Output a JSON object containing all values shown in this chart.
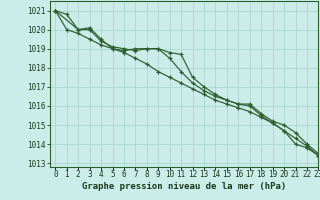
{
  "title": "Graphe pression niveau de la mer (hPa)",
  "bg_color": "#ccecea",
  "grid_color": "#aad8d4",
  "line_color": "#2d5e2d",
  "xlim": [
    -0.5,
    23
  ],
  "ylim": [
    1012.8,
    1021.5
  ],
  "yticks": [
    1013,
    1014,
    1015,
    1016,
    1017,
    1018,
    1019,
    1020,
    1021
  ],
  "xticks": [
    0,
    1,
    2,
    3,
    4,
    5,
    6,
    7,
    8,
    9,
    10,
    11,
    12,
    13,
    14,
    15,
    16,
    17,
    18,
    19,
    20,
    21,
    22,
    23
  ],
  "series1_x": [
    0,
    1,
    2,
    3,
    4,
    5,
    6,
    7,
    8,
    9,
    10,
    11,
    12,
    13,
    14,
    15,
    16,
    17,
    18,
    19,
    20,
    21,
    22,
    23
  ],
  "series1_y": [
    1021.0,
    1020.8,
    1020.0,
    1020.0,
    1019.4,
    1019.1,
    1019.0,
    1018.9,
    1019.0,
    1019.0,
    1018.8,
    1018.7,
    1017.5,
    1017.0,
    1016.6,
    1016.3,
    1016.1,
    1016.0,
    1015.5,
    1015.1,
    1014.7,
    1014.0,
    1013.8,
    1013.4
  ],
  "series2_x": [
    0,
    2,
    3,
    4,
    5,
    6,
    7,
    8,
    9,
    10,
    11,
    12,
    13,
    14,
    15,
    16,
    17,
    18,
    19,
    20,
    21,
    22,
    23
  ],
  "series2_y": [
    1021.0,
    1020.0,
    1020.1,
    1019.5,
    1019.0,
    1018.9,
    1019.0,
    1019.0,
    1019.0,
    1018.5,
    1017.8,
    1017.2,
    1016.8,
    1016.5,
    1016.3,
    1016.1,
    1016.1,
    1015.6,
    1015.2,
    1015.0,
    1014.6,
    1014.0,
    1013.5
  ],
  "series3_x": [
    0,
    1,
    2,
    3,
    4,
    5,
    6,
    7,
    8,
    9,
    10,
    11,
    12,
    13,
    14,
    15,
    16,
    17,
    18,
    19,
    20,
    21,
    22,
    23
  ],
  "series3_y": [
    1021.0,
    1020.0,
    1019.8,
    1019.5,
    1019.2,
    1019.0,
    1018.8,
    1018.5,
    1018.2,
    1017.8,
    1017.5,
    1017.2,
    1016.9,
    1016.6,
    1016.3,
    1016.1,
    1015.9,
    1015.7,
    1015.4,
    1015.1,
    1014.7,
    1014.3,
    1013.9,
    1013.4
  ],
  "ylabel_fontsize": 5.5,
  "xlabel_fontsize": 5.5,
  "title_fontsize": 6.5,
  "spine_color": "#2d5e2d"
}
